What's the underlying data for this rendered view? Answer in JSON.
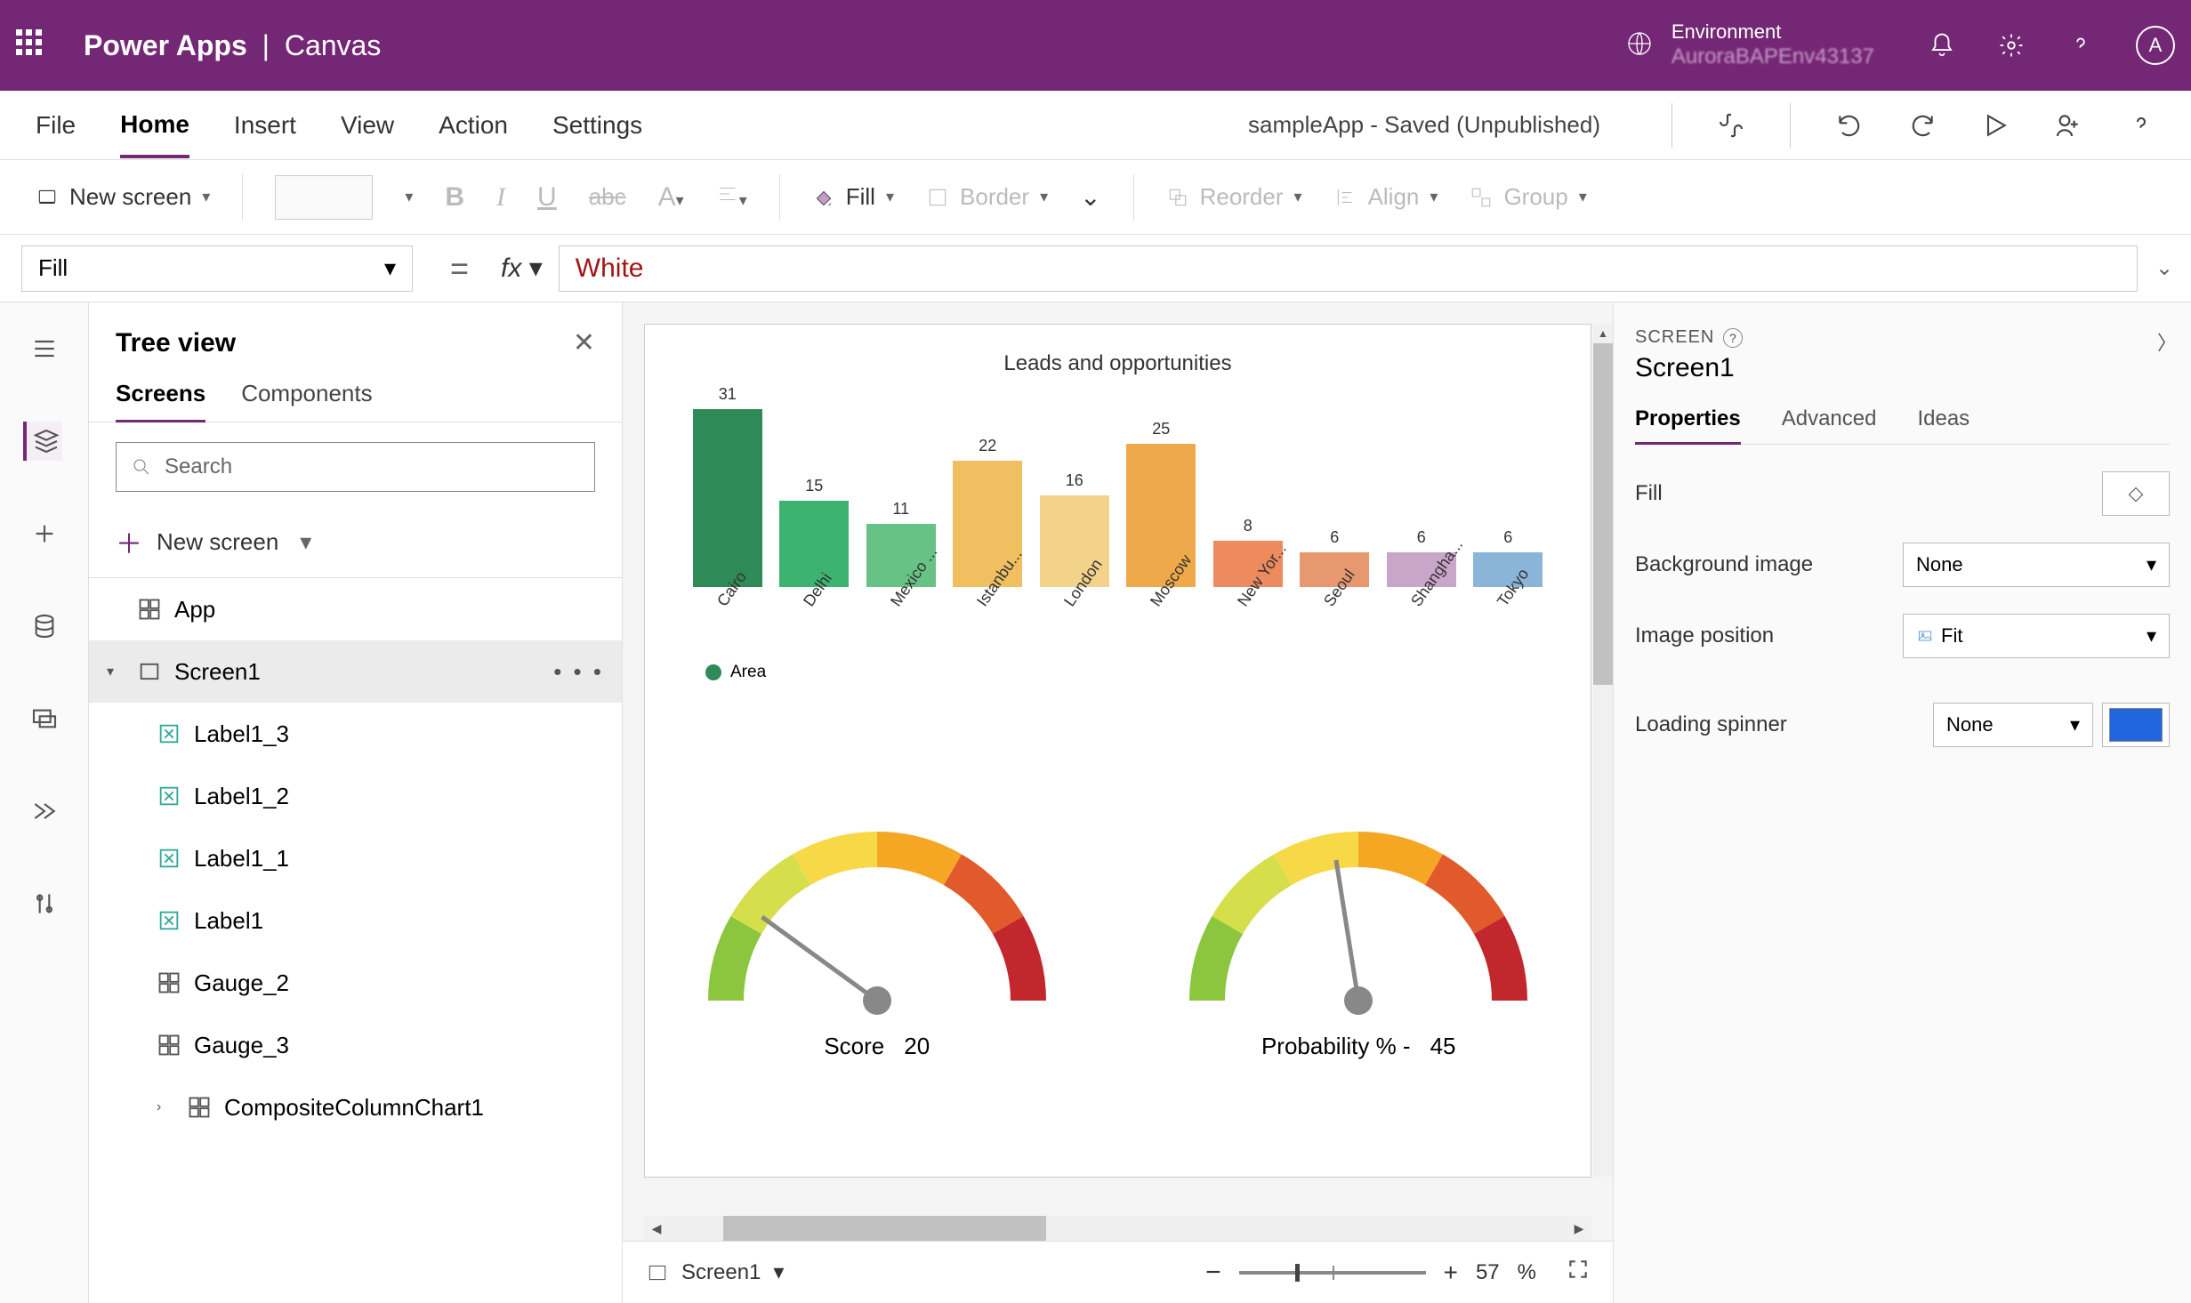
{
  "brand": {
    "app": "Power Apps",
    "mode": "Canvas"
  },
  "env": {
    "label": "Environment",
    "name": "AuroraBAPEnv43137"
  },
  "avatar_initial": "A",
  "menu": {
    "file": "File",
    "home": "Home",
    "insert": "Insert",
    "view": "View",
    "action": "Action",
    "settings": "Settings"
  },
  "app_status": "sampleApp - Saved (Unpublished)",
  "ribbon": {
    "newscreen": "New screen",
    "fill": "Fill",
    "border": "Border",
    "reorder": "Reorder",
    "align": "Align",
    "group": "Group"
  },
  "formula": {
    "property": "Fill",
    "value": "White"
  },
  "treeview": {
    "title": "Tree view",
    "tabs": {
      "screens": "Screens",
      "components": "Components"
    },
    "search_placeholder": "Search",
    "newscreen": "New screen",
    "items": {
      "app": "App",
      "screen1": "Screen1",
      "label13": "Label1_3",
      "label12": "Label1_2",
      "label11": "Label1_1",
      "label1": "Label1",
      "gauge2": "Gauge_2",
      "gauge3": "Gauge_3",
      "chart1": "CompositeColumnChart1"
    }
  },
  "canvas": {
    "chart": {
      "type": "bar",
      "title": "Leads and opportunities",
      "categories": [
        "Cairo",
        "Delhi",
        "Mexico ...",
        "Istanbu...",
        "London",
        "Moscow",
        "New Yor...",
        "Seoul",
        "Shangha...",
        "Tokyo"
      ],
      "values": [
        31,
        15,
        11,
        22,
        16,
        25,
        8,
        6,
        6,
        6
      ],
      "colors": [
        "#2e8b57",
        "#3cb371",
        "#66c285",
        "#f0c060",
        "#f3d28a",
        "#f0a94a",
        "#ed8a5e",
        "#e8986f",
        "#c9a5c9",
        "#8ab4d8"
      ],
      "max": 31,
      "legend_label": "Area",
      "legend_color": "#2e8b57",
      "label_fontsize": 18,
      "background_color": "#ffffff"
    },
    "gauge1": {
      "label": "Score",
      "value": 20,
      "segments": [
        "#8cc63f",
        "#d4df4b",
        "#f7d948",
        "#f5a623",
        "#e05a2b",
        "#c1272d"
      ],
      "needle_color": "#888888"
    },
    "gauge2": {
      "label": "Probability % -",
      "value": 45,
      "segments": [
        "#8cc63f",
        "#d4df4b",
        "#f7d948",
        "#f5a623",
        "#e05a2b",
        "#c1272d"
      ],
      "needle_color": "#888888"
    },
    "footer": {
      "screen_label": "Screen1",
      "zoom": "57",
      "zoom_unit": "%"
    },
    "hscroll": {
      "thumb_left_pct": 6,
      "thumb_width_pct": 36
    }
  },
  "props": {
    "type_label": "SCREEN",
    "name": "Screen1",
    "tabs": {
      "properties": "Properties",
      "advanced": "Advanced",
      "ideas": "Ideas"
    },
    "fields": {
      "fill": "Fill",
      "bgimage": "Background image",
      "bgimage_value": "None",
      "imgpos": "Image position",
      "imgpos_value": "Fit",
      "spinner": "Loading spinner",
      "spinner_value": "None",
      "spinner_color": "#2266dd"
    }
  }
}
